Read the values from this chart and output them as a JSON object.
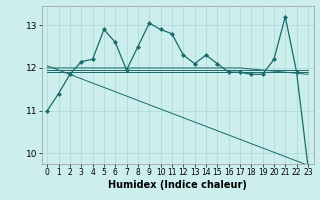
{
  "title": "",
  "xlabel": "Humidex (Indice chaleur)",
  "bg_color": "#cceeed",
  "grid_color": "#aad8d5",
  "line_color": "#1a6b6b",
  "xlim": [
    -0.5,
    23.5
  ],
  "ylim": [
    9.75,
    13.45
  ],
  "yticks": [
    10,
    11,
    12,
    13
  ],
  "xticks": [
    0,
    1,
    2,
    3,
    4,
    5,
    6,
    7,
    8,
    9,
    10,
    11,
    12,
    13,
    14,
    15,
    16,
    17,
    18,
    19,
    20,
    21,
    22,
    23
  ],
  "series1": [
    11.0,
    11.4,
    11.85,
    12.15,
    12.2,
    12.9,
    12.6,
    11.95,
    12.5,
    13.05,
    12.9,
    12.8,
    12.3,
    12.1,
    12.3,
    12.1,
    11.9,
    11.9,
    11.85,
    11.85,
    12.2,
    13.2,
    11.9,
    9.7
  ],
  "series2_x": [
    0,
    23
  ],
  "series2_y": [
    11.9,
    11.9
  ],
  "series3_x": [
    0,
    23
  ],
  "series3_y": [
    11.95,
    11.95
  ],
  "series4_x": [
    0,
    17,
    23
  ],
  "series4_y": [
    12.0,
    12.0,
    11.85
  ],
  "series5_x": [
    0,
    23
  ],
  "series5_y": [
    12.05,
    9.72
  ]
}
